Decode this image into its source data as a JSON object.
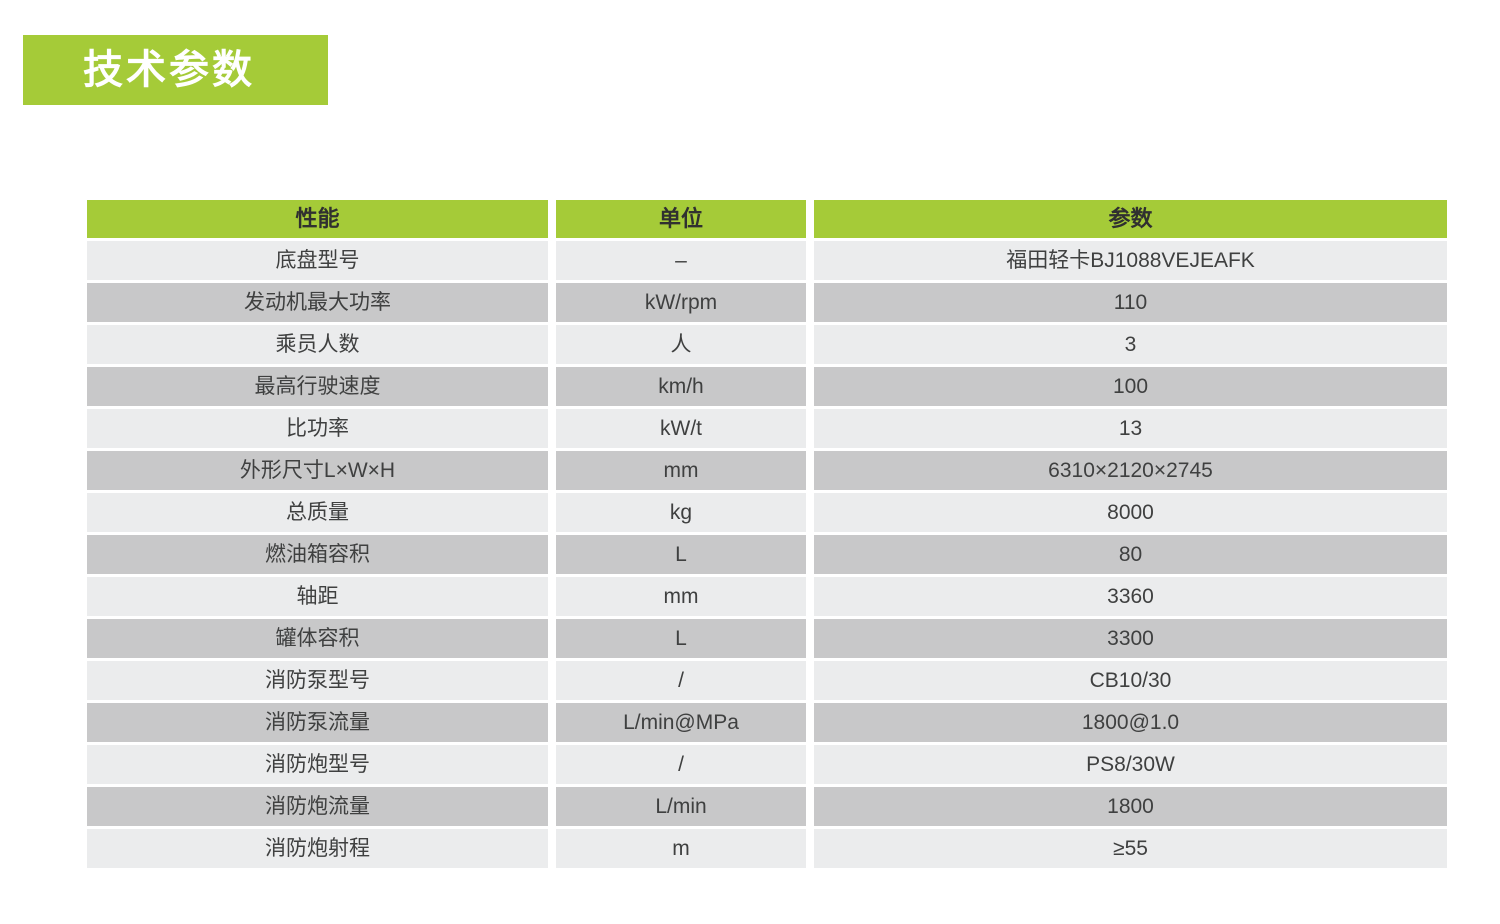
{
  "title": "技术参数",
  "colors": {
    "green": "#a5cb38",
    "row_light": "#ebeced",
    "row_dark": "#c8c8c9",
    "title_text": "#ffffff",
    "header_text": "#303030",
    "cell_text": "#3f4040"
  },
  "table": {
    "headers": [
      "性能",
      "单位",
      "参数"
    ],
    "rows": [
      {
        "name": "底盘型号",
        "unit": "–",
        "value": "福田轻卡BJ1088VEJEAFK"
      },
      {
        "name": "发动机最大功率",
        "unit": "kW/rpm",
        "value": "110"
      },
      {
        "name": "乘员人数",
        "unit": "人",
        "value": "3"
      },
      {
        "name": "最高行驶速度",
        "unit": "km/h",
        "value": "100"
      },
      {
        "name": "比功率",
        "unit": "kW/t",
        "value": "13"
      },
      {
        "name": "外形尺寸L×W×H",
        "unit": "mm",
        "value": "6310×2120×2745"
      },
      {
        "name": "总质量",
        "unit": "kg",
        "value": "8000"
      },
      {
        "name": "燃油箱容积",
        "unit": "L",
        "value": "80"
      },
      {
        "name": "轴距",
        "unit": "mm",
        "value": "3360"
      },
      {
        "name": "罐体容积",
        "unit": "L",
        "value": "3300"
      },
      {
        "name": "消防泵型号",
        "unit": "/",
        "value": "CB10/30"
      },
      {
        "name": "消防泵流量",
        "unit": "L/min@MPa",
        "value": "1800@1.0"
      },
      {
        "name": "消防炮型号",
        "unit": "/",
        "value": "PS8/30W"
      },
      {
        "name": "消防炮流量",
        "unit": "L/min",
        "value": "1800"
      },
      {
        "name": "消防炮射程",
        "unit": "m",
        "value": "≥55"
      }
    ]
  }
}
